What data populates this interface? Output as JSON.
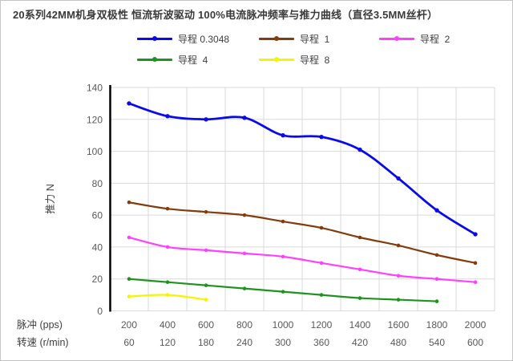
{
  "title": "20系列42MM机身双极性 恒流斩波驱动 100%电流脉冲频率与推力曲线（直径3.5MM丝杆）",
  "colors": {
    "grid": "#D9D9D9",
    "axis": "#000000",
    "tick_text": "#595959",
    "label_text": "#404040",
    "title_text": "#3A3A3A",
    "border": "#C5C5C5"
  },
  "chart_data": {
    "type": "line",
    "title": "20系列42MM机身双极性 恒流斩波驱动 100%电流脉冲频率与推力曲线（直径3.5MM丝杆）",
    "ylabel": "推力 N",
    "xlabel": "",
    "ylim": [
      0,
      140
    ],
    "ytick_interval": 20,
    "grid": true,
    "legend_position": "top",
    "x_axis_rows": [
      {
        "label": "脉冲  (pps)",
        "values": [
          200,
          400,
          600,
          800,
          1000,
          1200,
          1400,
          1600,
          1800,
          2000
        ]
      },
      {
        "label": "转速 (r/min)",
        "values": [
          60,
          120,
          180,
          240,
          300,
          360,
          420,
          480,
          540,
          600
        ]
      }
    ],
    "series": [
      {
        "name": "导程 0.3048",
        "color": "#0A0AEF",
        "values": [
          130,
          122,
          120,
          121,
          110,
          109,
          101,
          83,
          63,
          48
        ]
      },
      {
        "name": "导程  1",
        "color": "#843C0C",
        "values": [
          68,
          64,
          62,
          60,
          56,
          52,
          46,
          41,
          35,
          30
        ]
      },
      {
        "name": "导程  2",
        "color": "#FF40FF",
        "values": [
          46,
          40,
          38,
          36,
          34,
          30,
          26,
          22,
          20,
          18
        ]
      },
      {
        "name": "导程  4",
        "color": "#1E941E",
        "values": [
          20,
          18,
          16,
          14,
          12,
          10,
          8,
          7,
          6
        ]
      },
      {
        "name": "导程  8",
        "color": "#F5F500",
        "values": [
          9,
          10,
          7
        ]
      }
    ]
  }
}
